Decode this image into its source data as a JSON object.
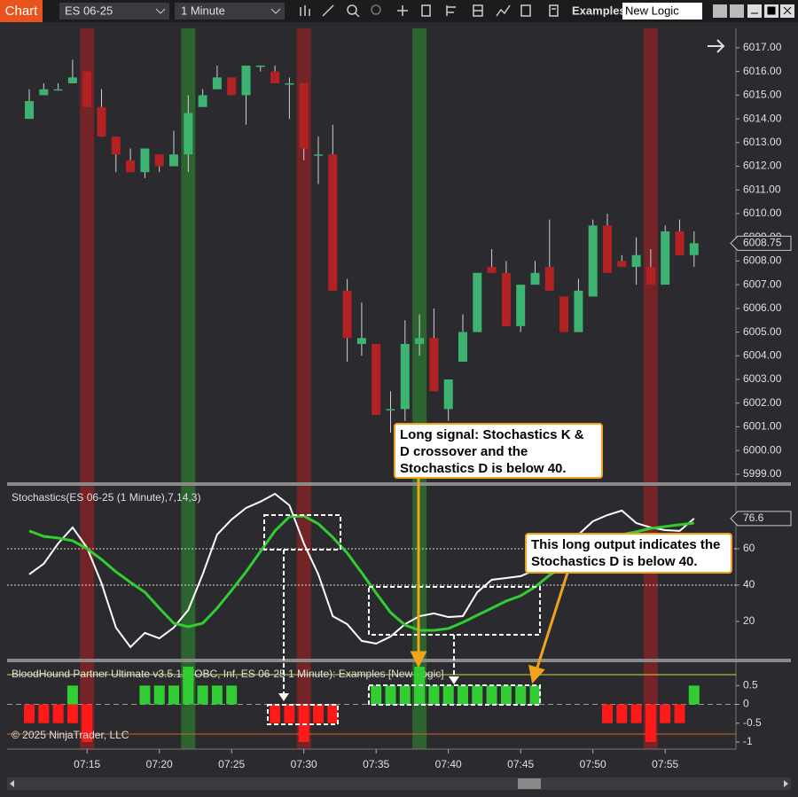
{
  "toolbar": {
    "tab": "Chart",
    "instrument": "ES 06-25",
    "interval": "1 Minute",
    "workspace": "Examples",
    "strategy": "New Logic"
  },
  "copyright": "© 2025 NinjaTrader, LLC",
  "annotations": [
    "Long signal:  Stochastics K & D crossover and the Stochastics D is below 40.",
    "This long output indicates the Stochastics D is below 40."
  ],
  "chart_data": [
    {
      "type": "candlestick",
      "categories": [
        null,
        null,
        null,
        null,
        "07:15",
        null,
        null,
        null,
        null,
        "07:20",
        null,
        null,
        null,
        null,
        "07:25",
        null,
        null,
        null,
        null,
        "07:30",
        null,
        null,
        null,
        null,
        "07:35",
        null,
        null,
        null,
        null,
        "07:40",
        null,
        null,
        null,
        null,
        "07:45",
        null,
        null,
        null,
        null,
        "07:50",
        null,
        null,
        null,
        null,
        "07:55",
        null,
        null
      ],
      "open": [
        6014.0,
        6015.0,
        6015.25,
        6015.5,
        6016.0,
        6014.5,
        6013.25,
        6012.25,
        6011.75,
        6012.5,
        6012.0,
        6012.5,
        6014.5,
        6015.25,
        6015.75,
        6015.0,
        6016.25,
        6016.0,
        6015.5,
        6015.5,
        6012.5,
        6012.5,
        6006.75,
        6004.5,
        6004.5,
        6001.75,
        6001.75,
        6004.5,
        6004.75,
        6001.75,
        6003.75,
        6005.0,
        6007.75,
        6007.5,
        6005.25,
        6007.0,
        6007.75,
        6006.5,
        6005.0,
        6006.5,
        6009.5,
        6008.0,
        6007.75,
        6007.75,
        6007.0,
        6009.25,
        6008.25
      ],
      "high": [
        6015.25,
        6015.5,
        6015.5,
        6016.5,
        6016.0,
        6015.25,
        6013.25,
        6012.75,
        6012.75,
        6012.5,
        6013.5,
        6015.0,
        6015.25,
        6016.25,
        6015.75,
        6016.25,
        6016.25,
        6016.25,
        6015.75,
        6015.5,
        6013.25,
        6013.75,
        6007.25,
        6006.25,
        6004.5,
        6002.5,
        6005.5,
        6005.75,
        6006.0,
        6003.0,
        6005.75,
        6007.5,
        6008.5,
        6008.0,
        6007.0,
        6008.0,
        6009.75,
        6006.5,
        6007.25,
        6009.75,
        6010.0,
        6008.25,
        6009.0,
        6008.5,
        6009.5,
        6009.75,
        6009.25
      ],
      "low": [
        6014.0,
        6015.0,
        6015.25,
        6015.5,
        6014.5,
        6013.25,
        6011.75,
        6011.75,
        6011.5,
        6011.75,
        6012.0,
        6011.75,
        6014.5,
        6015.25,
        6015.0,
        6013.75,
        6016.0,
        6015.5,
        6014.0,
        6012.25,
        6011.25,
        6006.75,
        6003.75,
        6004.0,
        6001.5,
        6000.75,
        6001.25,
        6004.0,
        6002.5,
        6001.25,
        6003.75,
        6005.0,
        6007.5,
        6005.25,
        6005.0,
        6007.0,
        6006.75,
        6005.0,
        6005.0,
        6006.5,
        6007.5,
        6007.75,
        6007.0,
        6007.0,
        6007.0,
        6008.25,
        6007.75
      ],
      "close": [
        6014.75,
        6015.25,
        6015.25,
        6015.75,
        6014.5,
        6013.25,
        6012.5,
        6011.75,
        6012.75,
        6012.0,
        6012.5,
        6014.25,
        6015.0,
        6015.75,
        6015.0,
        6016.25,
        6016.25,
        6015.5,
        6015.5,
        6012.75,
        6012.5,
        6006.75,
        6004.75,
        6004.75,
        6001.5,
        6001.75,
        6004.5,
        6004.75,
        6002.5,
        6003.0,
        6005.0,
        6007.5,
        6007.5,
        6005.25,
        6007.0,
        6007.5,
        6006.75,
        6005.0,
        6006.75,
        6009.5,
        6007.5,
        6007.75,
        6008.25,
        6007.0,
        6009.25,
        6008.25,
        6008.75
      ],
      "up_color": "#3cb371",
      "down_color": "#b22222",
      "wick_color": "#d0d0d0",
      "ylim": [
        5998.66,
        6017.82
      ],
      "yticks": [
        {
          "value": 5999,
          "label": "5999.00"
        },
        {
          "value": 6000,
          "label": "6000.00"
        },
        {
          "value": 6001,
          "label": "6001.00"
        },
        {
          "value": 6002,
          "label": "6002.00"
        },
        {
          "value": 6003,
          "label": "6003.00"
        },
        {
          "value": 6004,
          "label": "6004.00"
        },
        {
          "value": 6005,
          "label": "6005.00"
        },
        {
          "value": 6006,
          "label": "6006.00"
        },
        {
          "value": 6007,
          "label": "6007.00"
        },
        {
          "value": 6008,
          "label": "6008.00"
        },
        {
          "value": 6009,
          "label": "6009.00"
        },
        {
          "value": 6010,
          "label": "6010.00"
        },
        {
          "value": 6011,
          "label": "6011.00"
        },
        {
          "value": 6012,
          "label": "6012.00"
        },
        {
          "value": 6013,
          "label": "6013.00"
        },
        {
          "value": 6014,
          "label": "6014.00"
        },
        {
          "value": 6015,
          "label": "6015.00"
        },
        {
          "value": 6016,
          "label": "6016.00"
        },
        {
          "value": 6017,
          "label": "6017.00"
        }
      ]
    },
    {
      "type": "line",
      "title": "Stochastics(ES 06-25 (1 Minute),7,14,3)",
      "series": [
        {
          "color": "#ffffff",
          "values": [
            45.9,
            51.7,
            62.9,
            71.7,
            60.5,
            41,
            16.6,
            5.9,
            13.7,
            10.7,
            16.6,
            26.3,
            45.9,
            67.8,
            76.1,
            82.4,
            85.9,
            90.2,
            83.9,
            62.9,
            45.9,
            22.9,
            18.5,
            9.3,
            7.8,
            11.7,
            18.5,
            22.9,
            24.4,
            22.4,
            22.9,
            36.1,
            42.9,
            43.9,
            44.9,
            48.3,
            58.0,
            61.5,
            67.8,
            75.1,
            78.5,
            81.0,
            74.1,
            71.7,
            70.2,
            69.8,
            76.6
          ]
        },
        {
          "color": "#32cd32",
          "values": [
            69.8,
            66.8,
            65.9,
            64.4,
            60.0,
            54.1,
            47.3,
            41.5,
            36.1,
            27.3,
            19.0,
            17.1,
            19.0,
            27.3,
            37.1,
            47.3,
            58.5,
            69.8,
            77.6,
            78.0,
            73.7,
            66.3,
            57.6,
            46.8,
            35.6,
            24.9,
            18.0,
            15.1,
            15.1,
            16.1,
            19.5,
            23.4,
            27.3,
            31.2,
            34.1,
            39.0,
            45.4,
            50.7,
            56.6,
            62.0,
            65.9,
            67.8,
            69.3,
            71.2,
            72.2,
            73.2,
            74.1
          ]
        }
      ],
      "ylim": [
        -0.5,
        94.6
      ],
      "yticks": [
        20,
        40,
        60
      ],
      "levels": [
        60,
        40
      ]
    },
    {
      "type": "bar",
      "title": "BloodHound Partner Ultimate v3.5.12 (OBC, Inf, ES 06-25 1 Minute): Examples  [New Logic]",
      "series": [
        {
          "color": "#32cd32",
          "values": [
            0,
            0,
            0,
            0.5,
            0,
            0,
            0,
            0,
            0.5,
            0.5,
            0.5,
            1,
            0.5,
            0.5,
            0.5,
            0,
            0,
            0,
            0,
            0,
            0,
            0,
            0,
            0,
            0.5,
            0.5,
            0.5,
            1,
            0.5,
            0.5,
            0.5,
            0.5,
            0.5,
            0.5,
            0.5,
            0.5,
            0,
            0,
            0,
            0,
            0,
            0,
            0,
            0,
            0,
            0,
            0.5
          ]
        },
        {
          "color": "#ff1a1a",
          "values": [
            -0.5,
            -0.5,
            -0.5,
            -0.5,
            -1,
            0,
            0,
            0,
            0,
            0,
            0,
            0,
            0,
            0,
            0,
            0,
            0,
            -0.5,
            -0.5,
            -1,
            -0.5,
            -0.5,
            0,
            0,
            0,
            0,
            0,
            0,
            0,
            0,
            0,
            0,
            0,
            0,
            0,
            0,
            0,
            0,
            0,
            0,
            -0.5,
            -0.5,
            -0.5,
            -1,
            -0.5,
            -0.5,
            0
          ]
        }
      ],
      "ylim": [
        -1.19,
        1.12
      ],
      "yticks": [
        0.5,
        0,
        -0.5,
        -1
      ]
    }
  ]
}
